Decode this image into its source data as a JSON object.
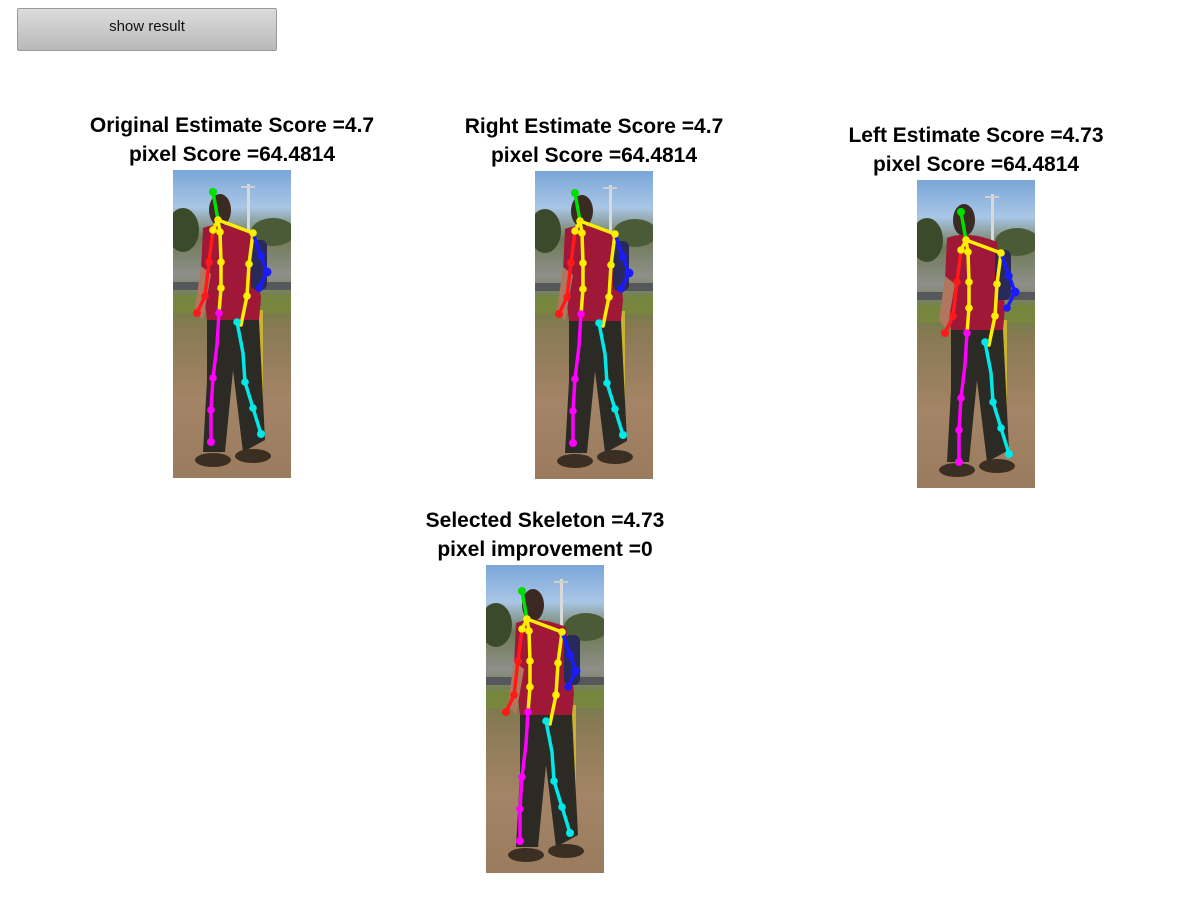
{
  "toolbar": {
    "show_result_label": "show result"
  },
  "panels": [
    {
      "id": "original",
      "title": "Original Estimate Score =4.7",
      "subtitle": "pixel Score =64.4814"
    },
    {
      "id": "right",
      "title": "Right Estimate Score =4.7",
      "subtitle": "pixel Score =64.4814"
    },
    {
      "id": "left",
      "title": "Left Estimate Score =4.73",
      "subtitle": "pixel Score =64.4814"
    },
    {
      "id": "selected",
      "title": "Selected Skeleton =4.73",
      "subtitle": "pixel improvement =0"
    }
  ],
  "colors": {
    "head": "#00e000",
    "torso": "#ffee00",
    "right_arm": "#ff1a1a",
    "left_arm": "#1a1aff",
    "right_leg": "#ff00ff",
    "left_leg": "#00e8e8"
  }
}
